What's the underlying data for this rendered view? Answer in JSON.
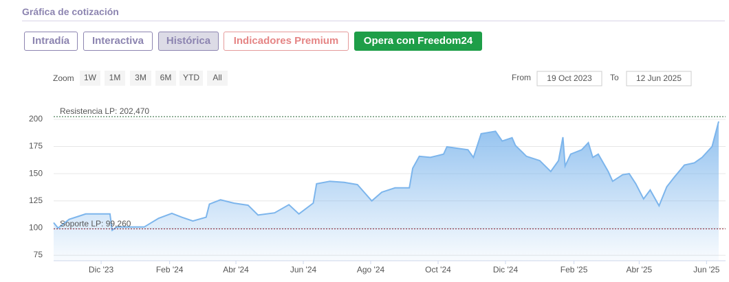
{
  "header": {
    "title": "Gráfica de cotización"
  },
  "tabs": [
    "Intradía",
    "Interactiva",
    "Histórica",
    "Indicadores Premium",
    "Opera con Freedom24"
  ],
  "range_selector": {
    "label": "Zoom",
    "buttons": [
      "1W",
      "1M",
      "3M",
      "6M",
      "YTD",
      "All"
    ],
    "from_label": "From",
    "from": "19 Oct 2023",
    "to_label": "To",
    "to": "12 Jun 2025"
  },
  "chart_data": {
    "type": "area",
    "color": "#7cb5ec",
    "x": [
      "2023-10-19",
      "2023-10-23",
      "2023-11-02",
      "2023-11-11",
      "2023-11-17",
      "2023-12-09",
      "2023-12-11",
      "2023-12-15",
      "2024-01-09",
      "2024-01-22",
      "2024-02-03",
      "2024-02-12",
      "2024-02-22",
      "2024-03-05",
      "2024-03-08",
      "2024-03-18",
      "2024-03-30",
      "2024-04-12",
      "2024-04-21",
      "2024-05-06",
      "2024-05-19",
      "2024-05-28",
      "2024-06-10",
      "2024-06-13",
      "2024-06-25",
      "2024-07-08",
      "2024-07-20",
      "2024-08-02",
      "2024-08-11",
      "2024-08-23",
      "2024-09-05",
      "2024-09-08",
      "2024-09-14",
      "2024-09-24",
      "2024-10-06",
      "2024-10-09",
      "2024-10-28",
      "2024-11-02",
      "2024-11-09",
      "2024-11-22",
      "2024-11-28",
      "2024-12-07",
      "2024-12-10",
      "2024-12-20",
      "2025-01-01",
      "2025-01-11",
      "2025-01-18",
      "2025-01-22",
      "2025-01-24",
      "2025-01-29",
      "2025-02-08",
      "2025-02-14",
      "2025-02-18",
      "2025-02-23",
      "2025-03-04",
      "2025-03-08",
      "2025-03-17",
      "2025-03-23",
      "2025-03-29",
      "2025-04-05",
      "2025-04-11",
      "2025-04-19",
      "2025-04-26",
      "2025-05-03",
      "2025-05-12",
      "2025-05-21",
      "2025-05-28",
      "2025-06-06",
      "2025-06-12"
    ],
    "values": [
      105,
      100,
      108,
      111,
      113,
      113,
      98,
      101,
      101,
      109,
      113.5,
      110,
      106.5,
      110,
      122,
      126,
      123,
      121,
      112,
      114,
      121.5,
      113,
      123,
      140.7,
      143,
      142,
      140,
      125,
      133,
      137,
      137,
      155,
      166,
      165,
      168,
      174.7,
      172,
      165,
      186.7,
      189,
      180,
      183,
      176,
      166,
      162,
      152,
      162,
      183.6,
      157,
      168,
      172,
      178.5,
      165,
      168,
      152,
      143,
      149,
      150,
      140.7,
      126.8,
      135,
      120.5,
      138,
      147,
      158,
      160,
      165,
      175,
      198
    ],
    "xlim": [
      "2023-10-19",
      "2025-06-12"
    ],
    "xticks": [
      {
        "value": "2023-12-01",
        "label": "Dic '23"
      },
      {
        "value": "2024-02-01",
        "label": "Feb '24"
      },
      {
        "value": "2024-04-01",
        "label": "Abr '24"
      },
      {
        "value": "2024-06-01",
        "label": "Jun '24"
      },
      {
        "value": "2024-08-01",
        "label": "Ago '24"
      },
      {
        "value": "2024-10-01",
        "label": "Oct '24"
      },
      {
        "value": "2024-12-01",
        "label": "Dic '24"
      },
      {
        "value": "2025-02-01",
        "label": "Feb '25"
      },
      {
        "value": "2025-04-01",
        "label": "Abr '25"
      },
      {
        "value": "2025-06-01",
        "label": "Jun '25"
      }
    ],
    "ylim": [
      70,
      210
    ],
    "yticks": [
      75,
      100,
      125,
      150,
      175,
      200
    ],
    "grid": true,
    "plot_lines": [
      {
        "label": "Resistencia LP: 202,470",
        "value": 202.47,
        "color": "#1f5f2f"
      },
      {
        "label": "Soporte LP: 99,260",
        "value": 99.26,
        "color": "#8b1a2b"
      }
    ]
  }
}
